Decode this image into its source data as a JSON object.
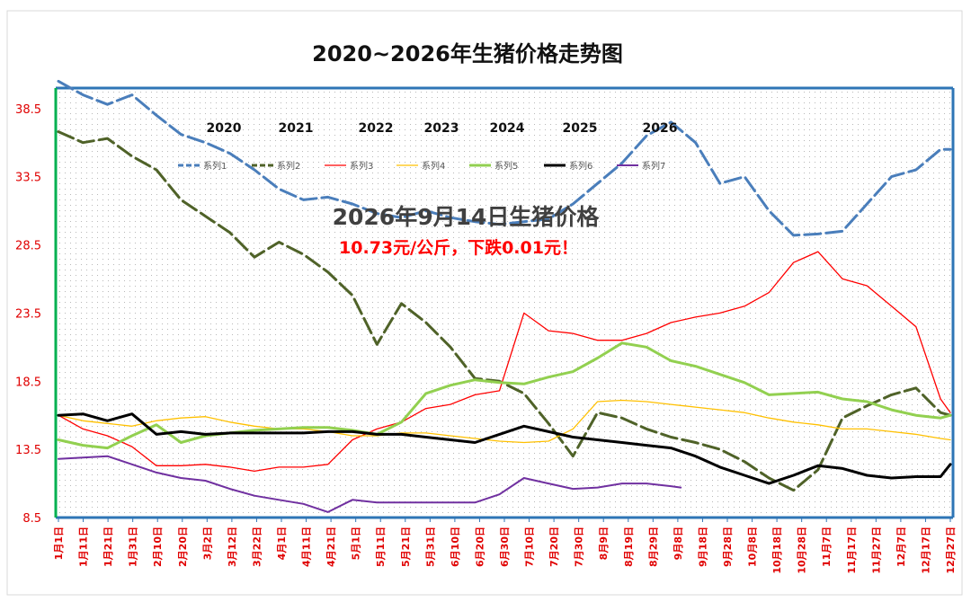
{
  "chart_data": {
    "type": "line",
    "title": "2020~2026年生猪价格走势图",
    "xlabel": "",
    "ylabel": "",
    "ylim": [
      8.5,
      40.0
    ],
    "yticks": [
      "8.5",
      "13.5",
      "18.5",
      "23.5",
      "28.5",
      "33.5",
      "38.5"
    ],
    "x_tick_labels": [
      "1月1日",
      "1月11日",
      "1月21日",
      "1月31日",
      "2月10日",
      "2月20日",
      "3月2日",
      "3月12日",
      "3月22日",
      "4月1日",
      "4月11日",
      "4月21日",
      "5月1日",
      "5月11日",
      "5月21日",
      "5月31日",
      "6月10日",
      "6月20日",
      "6月30日",
      "7月10日",
      "7月20日",
      "7月30日",
      "8月9日",
      "8月19日",
      "8月29日",
      "9月8日",
      "9月18日",
      "9月28日",
      "10月8日",
      "10月18日",
      "10月28日",
      "11月7日",
      "11月17日",
      "11月27日",
      "12月7日",
      "12月17日",
      "12月27日"
    ],
    "year_labels": [
      "2020",
      "2021",
      "2022",
      "2023",
      "2024",
      "2025",
      "2026"
    ],
    "annotations": {
      "line1": "2026年9月14日生猪价格",
      "line2": "10.73元/公斤，下跌0.01元！"
    },
    "grid": true,
    "legend_position": "top",
    "series": [
      {
        "name": "系列1",
        "style": "dashed",
        "color": "#4a7ebb",
        "width": 3,
        "x": [
          0,
          10,
          20,
          30,
          40,
          50,
          60,
          70,
          80,
          90,
          100,
          110,
          120,
          130,
          140,
          150,
          160,
          170,
          180,
          190,
          200,
          210,
          220,
          230,
          240,
          250,
          260,
          270,
          280,
          290,
          300,
          310,
          320,
          330,
          340,
          350,
          360,
          364
        ],
        "y": [
          40.5,
          39.5,
          38.8,
          39.5,
          38.0,
          36.6,
          36.0,
          35.2,
          34.0,
          32.6,
          31.8,
          32.0,
          31.5,
          30.8,
          30.5,
          31.0,
          30.5,
          30.2,
          30.0,
          30.2,
          30.4,
          31.5,
          33.0,
          34.5,
          36.5,
          37.5,
          36.0,
          33.0,
          33.5,
          31.0,
          29.2,
          29.3,
          29.5,
          31.5,
          33.5,
          34.0,
          35.5,
          35.5
        ]
      },
      {
        "name": "系列2",
        "style": "dashed",
        "color": "#4f6228",
        "width": 3,
        "x": [
          0,
          10,
          20,
          30,
          40,
          50,
          60,
          70,
          80,
          90,
          100,
          110,
          120,
          130,
          140,
          150,
          160,
          170,
          180,
          190,
          200,
          210,
          220,
          230,
          240,
          250,
          260,
          270,
          280,
          290,
          300,
          310,
          320,
          330,
          340,
          350,
          360,
          364
        ],
        "y": [
          36.8,
          36.0,
          36.3,
          35.0,
          34.0,
          31.8,
          30.6,
          29.4,
          27.6,
          28.7,
          27.8,
          26.5,
          24.8,
          21.2,
          24.2,
          22.8,
          21.0,
          18.7,
          18.5,
          17.6,
          15.4,
          13.0,
          16.2,
          15.8,
          15.0,
          14.4,
          14.0,
          13.5,
          12.6,
          11.4,
          10.5,
          12.0,
          15.8,
          16.7,
          17.5,
          18.0,
          16.2,
          16.0
        ]
      },
      {
        "name": "系列3",
        "style": "solid",
        "color": "#ff0000",
        "width": 1.3,
        "x": [
          0,
          10,
          20,
          30,
          40,
          50,
          60,
          70,
          80,
          90,
          100,
          110,
          120,
          130,
          140,
          150,
          160,
          170,
          180,
          190,
          200,
          210,
          220,
          230,
          240,
          250,
          260,
          270,
          280,
          290,
          300,
          310,
          320,
          330,
          340,
          350,
          360,
          364
        ],
        "y": [
          16.0,
          15.0,
          14.5,
          13.7,
          12.3,
          12.3,
          12.4,
          12.2,
          11.9,
          12.2,
          12.2,
          12.4,
          14.2,
          15.0,
          15.5,
          16.5,
          16.8,
          17.5,
          17.8,
          23.5,
          22.2,
          22.0,
          21.5,
          21.5,
          22.0,
          22.8,
          23.2,
          23.5,
          24.0,
          25.0,
          27.2,
          28.0,
          26.0,
          25.5,
          24.0,
          22.5,
          17.2,
          16.2
        ]
      },
      {
        "name": "系列4",
        "style": "solid",
        "color": "#ffc000",
        "width": 1.3,
        "x": [
          0,
          10,
          20,
          30,
          40,
          50,
          60,
          70,
          80,
          90,
          100,
          110,
          120,
          130,
          140,
          150,
          160,
          170,
          180,
          190,
          200,
          210,
          220,
          230,
          240,
          250,
          260,
          270,
          280,
          290,
          300,
          310,
          320,
          330,
          340,
          350,
          360,
          364
        ],
        "y": [
          16.0,
          15.6,
          15.4,
          15.2,
          15.6,
          15.8,
          15.9,
          15.5,
          15.2,
          15.0,
          15.0,
          14.8,
          14.5,
          14.5,
          14.7,
          14.7,
          14.5,
          14.3,
          14.1,
          14.0,
          14.1,
          15.0,
          17.0,
          17.1,
          17.0,
          16.8,
          16.6,
          16.4,
          16.2,
          15.8,
          15.5,
          15.3,
          15.0,
          15.0,
          14.8,
          14.6,
          14.3,
          14.2
        ]
      },
      {
        "name": "系列5",
        "style": "solid",
        "color": "#92d050",
        "width": 3,
        "x": [
          0,
          10,
          20,
          30,
          40,
          50,
          60,
          70,
          80,
          90,
          100,
          110,
          120,
          130,
          140,
          150,
          160,
          170,
          180,
          190,
          200,
          210,
          220,
          230,
          240,
          250,
          260,
          270,
          280,
          290,
          300,
          310,
          320,
          330,
          340,
          350,
          360,
          364
        ],
        "y": [
          14.2,
          13.8,
          13.6,
          14.5,
          15.3,
          14.0,
          14.5,
          14.7,
          14.9,
          15.0,
          15.1,
          15.1,
          14.9,
          14.6,
          15.5,
          17.6,
          18.2,
          18.6,
          18.4,
          18.3,
          18.8,
          19.2,
          20.2,
          21.3,
          21.0,
          20.0,
          19.6,
          19.0,
          18.4,
          17.5,
          17.6,
          17.7,
          17.2,
          17.0,
          16.4,
          16.0,
          15.8,
          16.0
        ]
      },
      {
        "name": "系列6",
        "style": "solid",
        "color": "#000000",
        "width": 3,
        "x": [
          0,
          10,
          20,
          30,
          40,
          50,
          60,
          70,
          80,
          90,
          100,
          110,
          120,
          130,
          140,
          150,
          160,
          170,
          180,
          190,
          200,
          210,
          220,
          230,
          240,
          250,
          260,
          270,
          280,
          290,
          300,
          310,
          320,
          330,
          340,
          350,
          360,
          364
        ],
        "y": [
          16.0,
          16.1,
          15.6,
          16.1,
          14.6,
          14.8,
          14.6,
          14.7,
          14.7,
          14.7,
          14.7,
          14.8,
          14.8,
          14.6,
          14.6,
          14.4,
          14.2,
          14.0,
          14.6,
          15.2,
          14.8,
          14.4,
          14.2,
          14.0,
          13.8,
          13.6,
          13.0,
          12.2,
          11.6,
          11.0,
          11.6,
          12.3,
          12.1,
          11.6,
          11.4,
          11.5,
          11.5,
          12.4
        ]
      },
      {
        "name": "系列7",
        "style": "solid",
        "color": "#7030a0",
        "width": 2,
        "x": [
          0,
          10,
          20,
          30,
          40,
          50,
          60,
          70,
          80,
          90,
          100,
          110,
          120,
          130,
          140,
          150,
          160,
          170,
          180,
          190,
          200,
          210,
          220,
          230,
          240,
          250,
          254
        ],
        "y": [
          12.8,
          12.9,
          13.0,
          12.4,
          11.8,
          11.4,
          11.2,
          10.6,
          10.1,
          9.8,
          9.5,
          8.9,
          9.8,
          9.6,
          9.6,
          9.6,
          9.6,
          9.6,
          10.2,
          11.4,
          11.0,
          10.6,
          10.7,
          11.0,
          11.0,
          10.8,
          10.7
        ]
      }
    ]
  }
}
